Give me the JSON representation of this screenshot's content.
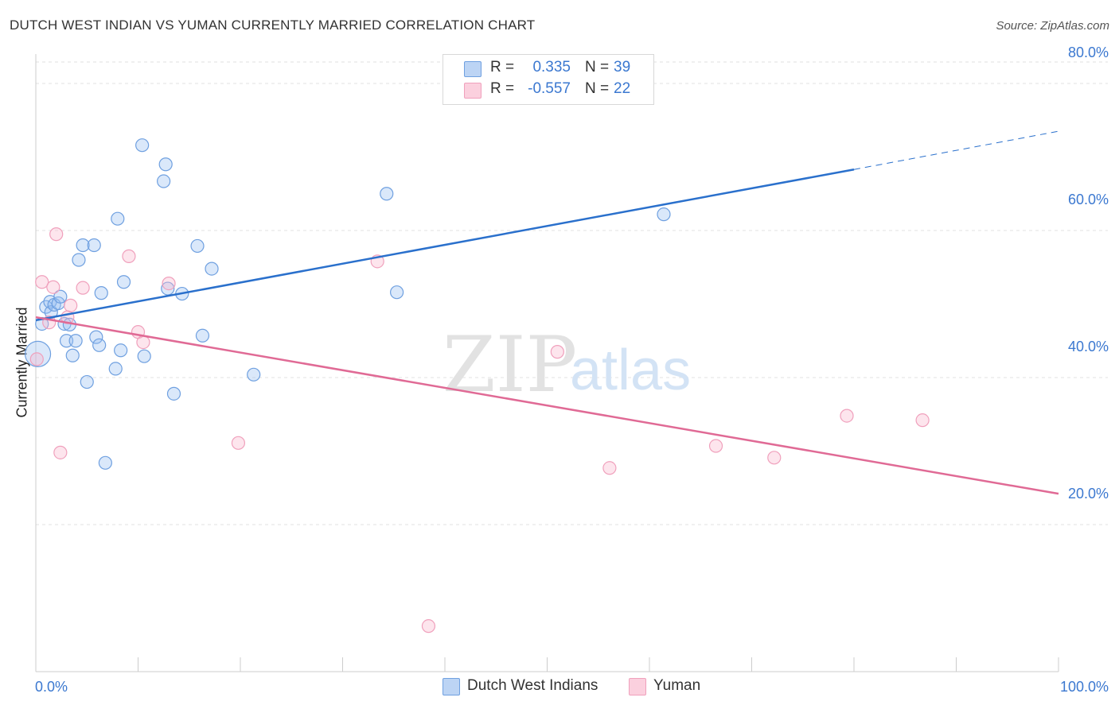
{
  "header": {
    "title": "DUTCH WEST INDIAN VS YUMAN CURRENTLY MARRIED CORRELATION CHART",
    "source": "Source: ZipAtlas.com"
  },
  "watermark": {
    "zip": "ZIP",
    "atlas": "atlas"
  },
  "legend": {
    "rows": [
      {
        "r_label": "R =",
        "r_value": "0.335",
        "n_label": "N =",
        "n_value": "39"
      },
      {
        "r_label": "R =",
        "r_value": "-0.557",
        "n_label": "N =",
        "n_value": "22"
      }
    ]
  },
  "bottom_legend": [
    "Dutch West Indians",
    "Yuman"
  ],
  "chart_data": {
    "type": "scatter",
    "title": "DUTCH WEST INDIAN VS YUMAN CURRENTLY MARRIED CORRELATION CHART",
    "ylabel": "Currently Married",
    "xlabel": "",
    "x_range": [
      0,
      100
    ],
    "y_range": [
      0,
      84
    ],
    "x_tick_labels": [
      "0.0%",
      "100.0%"
    ],
    "y_ticks": [
      20,
      40,
      60,
      80
    ],
    "y_tick_labels": [
      "20.0%",
      "40.0%",
      "60.0%",
      "80.0%"
    ],
    "grid": "horizontal dashed",
    "colors": {
      "dutch": "#6fa0e0",
      "yuman": "#f0a0bc",
      "dutch_line": "#2a70cc",
      "yuman_line": "#e06a95",
      "tick": "#3b78d0"
    },
    "series": [
      {
        "name": "Dutch West Indians",
        "R": 0.335,
        "N": 39,
        "points": [
          [
            0.2,
            43.2
          ],
          [
            0.6,
            47.3
          ],
          [
            1.0,
            49.6
          ],
          [
            1.4,
            50.3
          ],
          [
            1.5,
            48.9
          ],
          [
            1.8,
            49.9
          ],
          [
            2.2,
            50.1
          ],
          [
            2.4,
            51.0
          ],
          [
            2.8,
            47.3
          ],
          [
            3.0,
            45.0
          ],
          [
            3.3,
            47.2
          ],
          [
            3.6,
            43.0
          ],
          [
            3.9,
            45.0
          ],
          [
            4.2,
            56.0
          ],
          [
            4.6,
            58.0
          ],
          [
            5.0,
            39.4
          ],
          [
            5.7,
            58.0
          ],
          [
            5.9,
            45.5
          ],
          [
            6.2,
            44.4
          ],
          [
            6.4,
            51.5
          ],
          [
            6.8,
            28.4
          ],
          [
            7.8,
            41.2
          ],
          [
            8.0,
            61.6
          ],
          [
            8.3,
            43.7
          ],
          [
            8.6,
            53.0
          ],
          [
            10.4,
            71.6
          ],
          [
            10.6,
            42.9
          ],
          [
            12.5,
            66.7
          ],
          [
            12.9,
            52.1
          ],
          [
            12.7,
            69.0
          ],
          [
            13.5,
            37.8
          ],
          [
            14.3,
            51.4
          ],
          [
            15.8,
            57.9
          ],
          [
            16.3,
            45.7
          ],
          [
            17.2,
            54.8
          ],
          [
            21.3,
            40.4
          ],
          [
            34.3,
            65.0
          ],
          [
            35.3,
            51.6
          ],
          [
            61.4,
            62.2
          ]
        ]
      },
      {
        "name": "Yuman",
        "R": -0.557,
        "N": 22,
        "points": [
          [
            0.1,
            42.5
          ],
          [
            0.6,
            53.0
          ],
          [
            1.3,
            47.5
          ],
          [
            1.7,
            52.3
          ],
          [
            2.0,
            59.5
          ],
          [
            2.4,
            29.8
          ],
          [
            3.1,
            48.2
          ],
          [
            3.4,
            49.8
          ],
          [
            4.6,
            52.2
          ],
          [
            9.1,
            56.5
          ],
          [
            10.0,
            46.2
          ],
          [
            10.5,
            44.8
          ],
          [
            13.0,
            52.8
          ],
          [
            19.8,
            31.1
          ],
          [
            33.4,
            55.8
          ],
          [
            38.4,
            6.2
          ],
          [
            51.0,
            43.5
          ],
          [
            56.1,
            27.7
          ],
          [
            66.5,
            30.7
          ],
          [
            72.2,
            29.1
          ],
          [
            79.3,
            34.8
          ],
          [
            86.7,
            34.2
          ]
        ]
      }
    ],
    "trendlines": [
      {
        "series": "Dutch West Indians",
        "from": [
          0,
          47.8
        ],
        "to": [
          80,
          68.3
        ],
        "dashed_to": [
          100,
          73.5
        ]
      },
      {
        "series": "Yuman",
        "from": [
          0,
          48.2
        ],
        "to": [
          100,
          24.2
        ]
      }
    ]
  }
}
